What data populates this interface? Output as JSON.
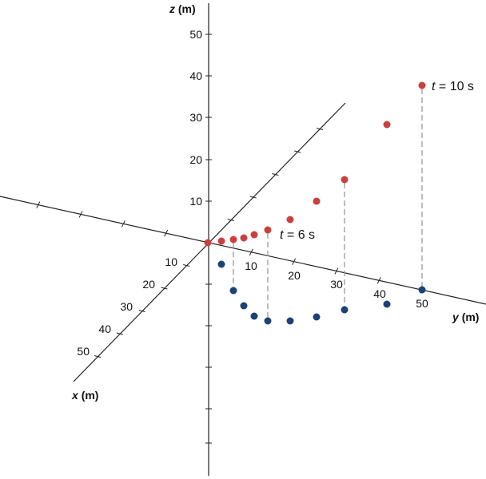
{
  "axes": {
    "z_label": "z",
    "z_unit": "(m)",
    "y_label": "y",
    "y_unit": "(m)",
    "x_label": "x",
    "x_unit": "(m)",
    "z_ticks": [
      "10",
      "20",
      "30",
      "40",
      "50"
    ],
    "y_ticks": [
      "10",
      "20",
      "30",
      "40",
      "50"
    ],
    "x_ticks": [
      "10",
      "20",
      "30",
      "40",
      "50"
    ]
  },
  "annotations": {
    "t6": {
      "var": "t",
      "rest": " = 6 s"
    },
    "t10": {
      "var": "t",
      "rest": " = 10 s"
    }
  },
  "colors": {
    "trajectory": "#c9403f",
    "projection": "#1c4276",
    "axis": "#222222",
    "dash": "#9a9a9a"
  }
}
